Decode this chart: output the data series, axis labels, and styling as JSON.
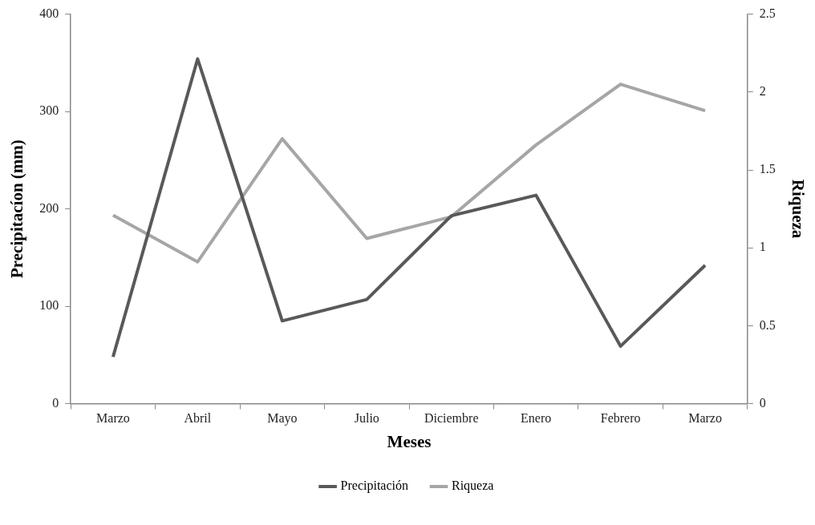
{
  "chart_data": {
    "type": "line",
    "xlabel": "Meses",
    "ylabel": "Precipitacíon (mm)",
    "y2label": "Riqueza",
    "categories": [
      "Marzo",
      "Abril",
      "Mayo",
      "Julio",
      "Diciembre",
      "Enero",
      "Febrero",
      "Marzo"
    ],
    "series": [
      {
        "name": "Precipitación",
        "color": "#595959",
        "values": [
          48,
          354,
          85,
          107,
          193,
          214,
          59,
          142
        ]
      },
      {
        "name": "Riqueza",
        "color": "#a6a6a6",
        "axis": "y2",
        "values": [
          1.21,
          0.91,
          1.7,
          1.06,
          1.2,
          1.66,
          2.05,
          1.88
        ]
      }
    ],
    "ylim": [
      0,
      400
    ],
    "yticks": [
      0,
      100,
      200,
      300,
      400
    ],
    "y2lim": [
      0,
      2.5
    ],
    "y2ticks": [
      0,
      0.5,
      1,
      1.5,
      2,
      2.5
    ],
    "grid": false,
    "legend": "bottom",
    "marker": "none",
    "line_style": "solid"
  }
}
